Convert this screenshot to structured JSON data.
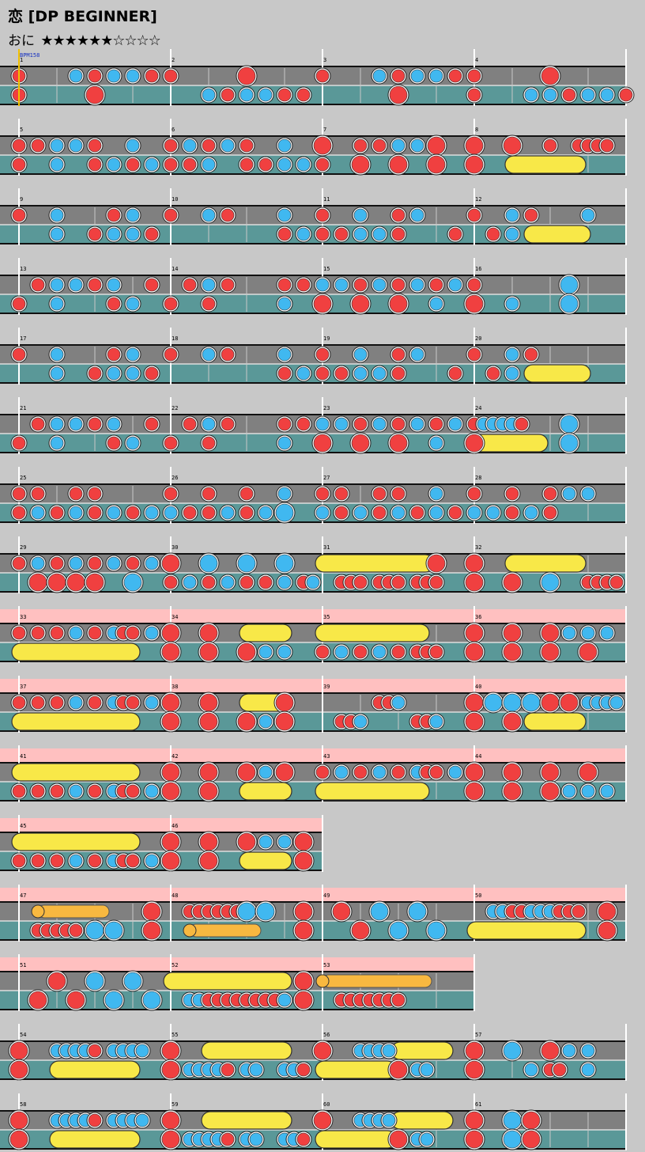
{
  "title": "恋 [DP BEGINNER]",
  "difficulty": {
    "label": "おに",
    "stars": "★★★★★★☆☆☆☆",
    "filled": 6,
    "total": 10
  },
  "bpm_label": "BPM158",
  "colors": {
    "don": "#f04040",
    "ka": "#40b8f0",
    "roll": "#f8e848",
    "balloon": "#f8b840",
    "gogo": "#ffc0c0",
    "lane_top": "#808080",
    "lane_bottom": "#5a9898"
  },
  "measure_labels": [
    "1",
    "2",
    "3",
    "4",
    "5",
    "6",
    "7",
    "8",
    "9",
    "10",
    "11",
    "12",
    "13",
    "14",
    "15",
    "16",
    "17",
    "18",
    "19",
    "20",
    "21",
    "22",
    "23",
    "24",
    "25",
    "26",
    "27",
    "28",
    "29",
    "30",
    "31",
    "32",
    "33",
    "34",
    "35",
    "36",
    "37",
    "38",
    "39",
    "40",
    "41",
    "42",
    "43",
    "44",
    "45",
    "46",
    "47",
    "48",
    "49",
    "50",
    "51",
    "52",
    "53",
    "54",
    "55",
    "56",
    "57",
    "58",
    "59",
    "60",
    "61"
  ],
  "rows": [
    {
      "m": [
        1,
        2,
        3,
        4
      ],
      "w": 4,
      "g": 0,
      "t": "d1 k4 d5 k6 k7 d8 d9 D13 d17 k20 d21 k22 k23 d24 d25 D29",
      "b": "d1 D5 k11 d12 k13 k14 d15 d16 D21 d25 k28 k29 d30 k31 k32 d33"
    },
    {
      "m": [
        5,
        6,
        7,
        8
      ],
      "w": 4,
      "g": 0,
      "t": "d1 d2 k3 k4 d5 k7 d9 k10 d11 k12 d13 k15 D17 d19 d20 k21 k22 D23 D25 D27 d29 d30.5 d31 d31.5 d32",
      "b": "d1 k3 d5 k6 d7 k8 d9 d10 k11 d13 d14 k15 k16 d17 D19 D21 D23 D25 R27-30.5"
    },
    {
      "m": [
        9,
        10,
        11,
        12
      ],
      "w": 4,
      "g": 0,
      "t": "d1 k3 d6 k7 d9 k11 d12 k15 d17 k19 d21 k22 d25 k27 d28 k31",
      "b": "k3 d5 k6 k7 d8 d15 k16 d17 d18 k19 k20 d21 d24 d26 k27 R28-30.75"
    },
    {
      "m": [
        13,
        14,
        15,
        16
      ],
      "w": 4,
      "g": 0,
      "t": "d2 k3 k4 d5 k6 d8 d10 k11 d12 d15 d16 k17 k18 d19 k20 d21 k22 d23 k24 d25 K30",
      "b": "d1 k3 d6 k7 d9 d11 k15 D17 D19 D21 k23 D25 k27 K30"
    },
    {
      "m": [
        17,
        18,
        19,
        20
      ],
      "w": 4,
      "g": 0,
      "t": "d1 k3 d6 k7 d9 k11 d12 k15 d17 k19 d21 k22 d25 k27 d28",
      "b": "k3 d5 k6 k7 d8 d15 k16 d17 d18 k19 k20 d21 d24 d26 k27 R28-30.75"
    },
    {
      "m": [
        21,
        22,
        23,
        24
      ],
      "w": 4,
      "g": 0,
      "t": "d2 k3 k4 d5 k6 d8 d10 k11 d12 d15 d16 k17 k18 d19 k20 d21 k22 d23 k24 d25 k25.5 k26 k26.5 k27 d27.5 K30",
      "b": "d1 k3 d6 k7 d9 d11 k15 D17 D19 D21 k23 D25 R25-28.5 K30"
    },
    {
      "m": [
        25,
        26,
        27,
        28
      ],
      "w": 4,
      "g": 0,
      "t": "d1 d2 d4 d5 d9 d11 d13 k15 d17 d18 d20 d21 k23 d25 d27 d29 k30 k31",
      "b": "d1 k2 d3 k4 d5 k6 d7 k8 k9 d10 d11 k12 d13 k14 d15 K15 k17 d18 k19 d20 k21 d22 k23 d24 k25 k26 d27 k28 d29"
    },
    {
      "m": [
        29,
        30,
        31,
        32
      ],
      "w": 4,
      "g": 0,
      "t": "d1 k2 d3 k4 d5 k6 d7 k8 D9 K11 K13 K15 R17-22.5 D23 D25 R27-30.5",
      "b": "D2 D3 D4 D5 K7 d9 k10 d11 k12 d13 d14 k15 d16 k16.5 d18 d18.5 d19 d20 d20.5 d21 d22 d22.5 d23 D25 D27 K29 d31 d31.5 d32 d32.5"
    },
    {
      "m": [
        33,
        34,
        35,
        36
      ],
      "w": 4,
      "g": 1,
      "t": "d1 d2 d3 k4 d5 k6 d6.5 d7 d8 k8 D9 D11 R13-15 R17-22.25 D25 D27 D29 k30 k31 k32",
      "b": "R1-7 D9 D11 D13 k14 k15 d17 k18 d19 k20 d21 d22 d22.5 d23 D25 D27 D29 D31"
    },
    {
      "m": [
        37,
        38,
        39,
        40
      ],
      "w": 4,
      "g": 1,
      "t": "d1 d2 d3 k4 d5 k6 d6.5 d7 d8 k8 D9 D11 R13-15 D15 d20 d20.5 k21 D25 K26 K27 K28 D29 D30 k31 k31.5 k32 k32.5",
      "b": "R1-7 D9 D11 D13 k14 k15 D15 d18 d18.5 k19 d22 d22.5 k23 D25 D27 R28-30.5"
    },
    {
      "m": [
        41,
        42,
        43,
        44
      ],
      "w": 4,
      "g": 1,
      "t": "R1-7 D9 D11 D13 k14 D15 d17 k18 d19 k20 d21 k22 d22.5 d23 k24 D25 D27 D29 D31",
      "b": "d1 d2 d3 k4 d5 k6 d6.5 d7 d8 k8 D9 D11 R13-15 R17-22.25 D25 D27 D29 k30 k31 k32"
    },
    {
      "m": [
        45,
        46
      ],
      "w": 2,
      "g": 1,
      "t": "R1-7 D9 D11 D13 k14 k15 D16",
      "b": "d1 d2 d3 k4 d5 k6 d6.5 d7 d8 k8 D9 D11 R13-15 D16"
    },
    {
      "m": [
        47,
        48,
        49,
        50
      ],
      "w": 4,
      "g": 1,
      "t": "B2-5.5 D8 d10 d10.5 d11 d11.5 d12 d12.5 K13 K14 D16 D18 K20 K22 k26 k26.5 d27 d27.5 k28 k28.5 k29 d29.5 d30 d30.5 D32",
      "b": "d2 d2.5 d3 d3.5 d4 K5 K6 D8 B10-13.5 D16 D19 K21 K23 R25-30.5 D32"
    },
    {
      "m": [
        51,
        52,
        53
      ],
      "w": 3,
      "g": 1,
      "t": "D3 K5 K7 R9-15 D16 B17-22.5",
      "b": "D2 D4 K6 K8 k10 k10.5 d11 d11.5 d12 d12.5 d13 d13.5 d14 d14.5 k15 D16 d18 d18.5 d19 d19.5 d20 d20.5 d21"
    },
    {
      "m": [
        54,
        55,
        56,
        57
      ],
      "w": 4,
      "g": 0,
      "t": "D1 k3 k3.5 k4 k4.5 d5 k6 k6.5 k7 k7.5 D9 R11-15 D17 k19 k19.5 k20 k20.5 R21-23.5 D25 K27 D29 k30 k31",
      "b": "D1 R3-7 D9 k10 k10.5 k11 k11.5 d12 k13 k13.5 k15 k15.5 d16 R17-20.5 D21 k22 k22.5 D25 k28 d29 d29.5 k31"
    },
    {
      "m": [
        58,
        59,
        60,
        61
      ],
      "w": 4,
      "g": 0,
      "t": "D1 k3 k3.5 k4 k4.5 d5 k6 k6.5 k7 k7.5 D9 R11-15 D17 k19 k19.5 k20 k20.5 R21-23.5 D25 K27 D28",
      "b": "D1 R3-7 D9 k10 k10.5 k11 k11.5 d12 k13 k13.5 k15 k15.5 d16 R17-20.5 D21 k22 k22.5 D25 K27 D28"
    }
  ]
}
